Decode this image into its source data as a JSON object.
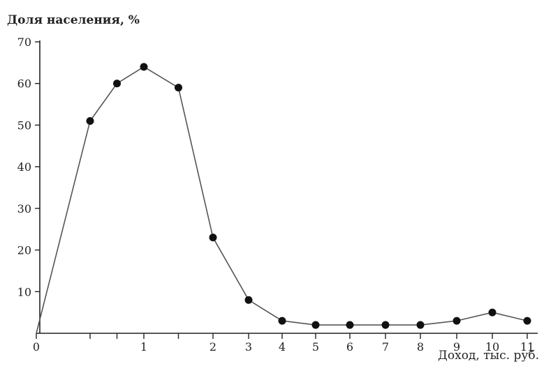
{
  "chart_data": {
    "type": "line",
    "title": "",
    "ylabel": "Доля населения, %",
    "xlabel": "Доход, тыс. руб.",
    "x_tick_labels": [
      "0",
      "1",
      "2",
      "3",
      "4",
      "5",
      "6",
      "7",
      "8",
      "9",
      "10",
      "11"
    ],
    "y_tick_labels": [
      "10",
      "20",
      "30",
      "40",
      "50",
      "60",
      "70"
    ],
    "ylim": [
      0,
      70
    ],
    "grid": false,
    "colors": {
      "line": "#555555",
      "marker": "#111111",
      "axis": "#222222"
    },
    "series": [
      {
        "x": [
          0,
          0.5,
          0.75,
          1,
          1.5,
          2,
          3,
          4,
          5,
          6,
          7,
          8,
          9,
          10,
          11
        ],
        "y": [
          0,
          51,
          60,
          64,
          59,
          23,
          8,
          3,
          2,
          2,
          2,
          2,
          3,
          5,
          3
        ]
      }
    ]
  }
}
